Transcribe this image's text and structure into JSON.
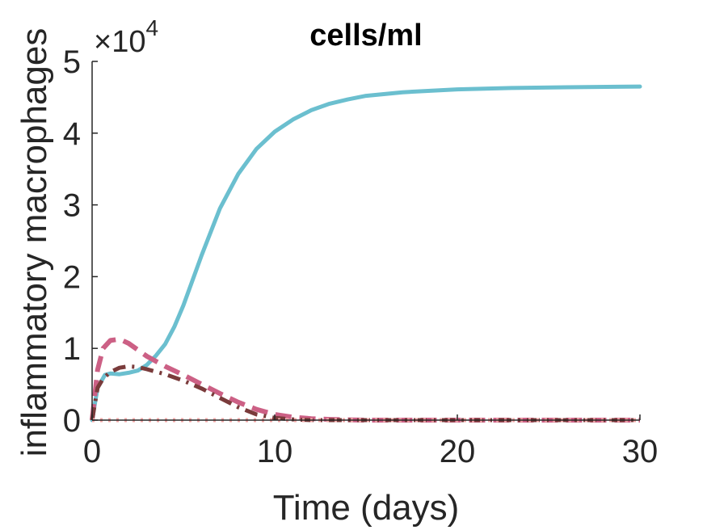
{
  "chart_data": {
    "type": "line",
    "title": "cells/ml",
    "xlabel": "Time (days)",
    "ylabel": "inflammatory macrophages",
    "xlim": [
      0,
      30
    ],
    "ylim": [
      0,
      50000
    ],
    "x_ticks": [
      "0",
      "10",
      "20",
      "30"
    ],
    "x_tick_values": [
      0,
      10,
      20,
      30
    ],
    "y_ticks": [
      "0",
      "1",
      "2",
      "3",
      "4",
      "5"
    ],
    "y_tick_values": [
      0,
      10000,
      20000,
      30000,
      40000,
      50000
    ],
    "y_exponent_base": "×10",
    "y_exponent_power": "4",
    "grid": false,
    "series": [
      {
        "style": "solid",
        "color": "#6bbfcf",
        "x": [
          0,
          0.3,
          0.7,
          1,
          1.5,
          2,
          2.5,
          3,
          3.5,
          4,
          4.5,
          5,
          6,
          7,
          8,
          9,
          10,
          11,
          12,
          13,
          14,
          15,
          17,
          20,
          23,
          26,
          30
        ],
        "y": [
          0,
          4500,
          6300,
          6500,
          6400,
          6600,
          6900,
          7700,
          9000,
          10600,
          13000,
          16000,
          23000,
          29500,
          34300,
          37800,
          40200,
          41900,
          43200,
          44100,
          44700,
          45200,
          45700,
          46100,
          46300,
          46400,
          46500
        ]
      },
      {
        "style": "dashed",
        "color": "#cc6085",
        "x": [
          0,
          0.3,
          0.6,
          1,
          1.5,
          2,
          2.5,
          3,
          4,
          5,
          6,
          7,
          8,
          9,
          10,
          11,
          12,
          13,
          14,
          15,
          20,
          25,
          30
        ],
        "y": [
          0,
          7000,
          10000,
          11100,
          11300,
          10700,
          9800,
          8900,
          7500,
          6300,
          5000,
          3700,
          2500,
          1500,
          800,
          400,
          200,
          100,
          50,
          0,
          0,
          0,
          0
        ]
      },
      {
        "style": "dashdot",
        "color": "#7a3b3b",
        "x": [
          0,
          0.3,
          0.6,
          1,
          1.5,
          2,
          2.5,
          3,
          4,
          5,
          6,
          7,
          8,
          9,
          10,
          11,
          12,
          15,
          20,
          25,
          30
        ],
        "y": [
          0,
          4500,
          5800,
          6700,
          7300,
          7500,
          7400,
          7100,
          6400,
          5500,
          4400,
          3100,
          1800,
          800,
          300,
          100,
          0,
          0,
          0,
          0,
          0
        ]
      },
      {
        "style": "dotted",
        "color": "#f2a6a6",
        "x": [
          0,
          5,
          10,
          15,
          20,
          25,
          30
        ],
        "y": [
          0,
          0,
          0,
          0,
          0,
          0,
          0
        ]
      }
    ]
  }
}
